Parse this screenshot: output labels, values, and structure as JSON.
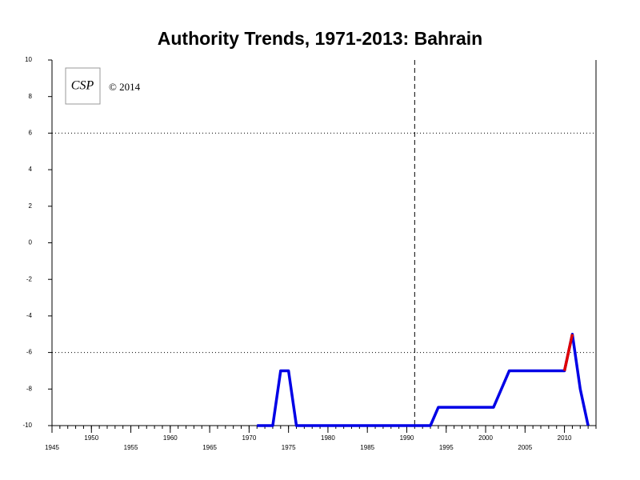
{
  "chart_data": {
    "type": "line",
    "title": "Authority Trends, 1971-2013: Bahrain",
    "annotation": "© 2014",
    "logo": "CSP",
    "xlim": [
      1945,
      2014
    ],
    "ylim": [
      -10,
      10
    ],
    "xticks": [
      1945,
      1950,
      1955,
      1960,
      1965,
      1970,
      1975,
      1980,
      1985,
      1990,
      1995,
      2000,
      2005,
      2010
    ],
    "xminor": [
      1945,
      1946,
      1947,
      1948,
      1949,
      1950,
      1951,
      1952,
      1953,
      1954,
      1955,
      1956,
      1957,
      1958,
      1959,
      1960,
      1961,
      1962,
      1963,
      1964,
      1965,
      1966,
      1967,
      1968,
      1969,
      1970,
      1971,
      1972,
      1973,
      1974,
      1975,
      1976,
      1977,
      1978,
      1979,
      1980,
      1981,
      1982,
      1983,
      1984,
      1985,
      1986,
      1987,
      1988,
      1989,
      1990,
      1991,
      1992,
      1993,
      1994,
      1995,
      1996,
      1997,
      1998,
      1999,
      2000,
      2001,
      2002,
      2003,
      2004,
      2005,
      2006,
      2007,
      2008,
      2009,
      2010,
      2011,
      2012,
      2013,
      2014
    ],
    "yticks": [
      -10,
      -8,
      -6,
      -4,
      -2,
      0,
      2,
      4,
      6,
      8,
      10
    ],
    "hlines": [
      6,
      -6
    ],
    "vlines": [
      1991
    ],
    "series": [
      {
        "color": "#0000e6",
        "x": [
          1971,
          1973,
          1974,
          1975,
          1976,
          1993,
          1994,
          2001,
          2003,
          2010,
          2011,
          2012,
          2013
        ],
        "values": [
          -10,
          -10,
          -7,
          -7,
          -10,
          -10,
          -9,
          -9,
          -7,
          -7,
          -5,
          -8,
          -10
        ]
      },
      {
        "color": "#e00000",
        "x": [
          2010,
          2011
        ],
        "values": [
          -7,
          -5
        ]
      }
    ]
  }
}
